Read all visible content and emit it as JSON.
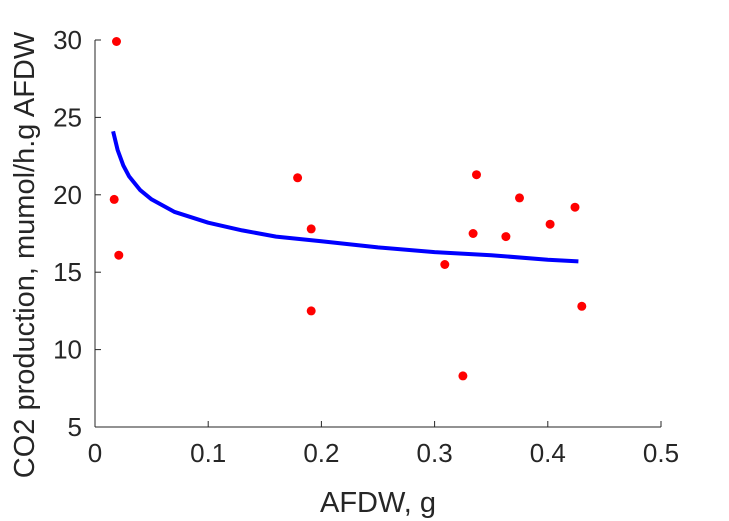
{
  "chart_data": {
    "type": "scatter",
    "title": "",
    "xlabel": "AFDW, g",
    "ylabel": "CO2 production, mumol/h.g AFDW",
    "xlim": [
      0,
      0.5
    ],
    "ylim": [
      5,
      30
    ],
    "xticks": [
      0,
      0.1,
      0.2,
      0.3,
      0.4,
      0.5
    ],
    "yticks": [
      5,
      10,
      15,
      20,
      25,
      30
    ],
    "xtick_labels": [
      "0",
      "0.1",
      "0.2",
      "0.3",
      "0.4",
      "0.5"
    ],
    "ytick_labels": [
      "5",
      "10",
      "15",
      "20",
      "25",
      "30"
    ],
    "grid": false,
    "legend": "none",
    "series": [
      {
        "kind": "points",
        "color": "#ff0000",
        "x": [
          0.019,
          0.017,
          0.021,
          0.179,
          0.191,
          0.191,
          0.309,
          0.325,
          0.334,
          0.337,
          0.363,
          0.375,
          0.402,
          0.424,
          0.43
        ],
        "y": [
          29.9,
          19.7,
          16.1,
          21.1,
          17.8,
          12.5,
          15.5,
          8.3,
          17.5,
          21.3,
          17.3,
          19.8,
          18.1,
          19.2,
          12.8
        ]
      },
      {
        "kind": "fit-curve",
        "color": "#0000ff",
        "x": [
          0.016,
          0.02,
          0.025,
          0.03,
          0.04,
          0.05,
          0.07,
          0.1,
          0.13,
          0.16,
          0.2,
          0.25,
          0.3,
          0.35,
          0.4,
          0.427
        ],
        "y": [
          24.1,
          22.9,
          21.9,
          21.2,
          20.3,
          19.7,
          18.9,
          18.2,
          17.7,
          17.3,
          17.0,
          16.6,
          16.3,
          16.1,
          15.8,
          15.7
        ]
      }
    ]
  }
}
